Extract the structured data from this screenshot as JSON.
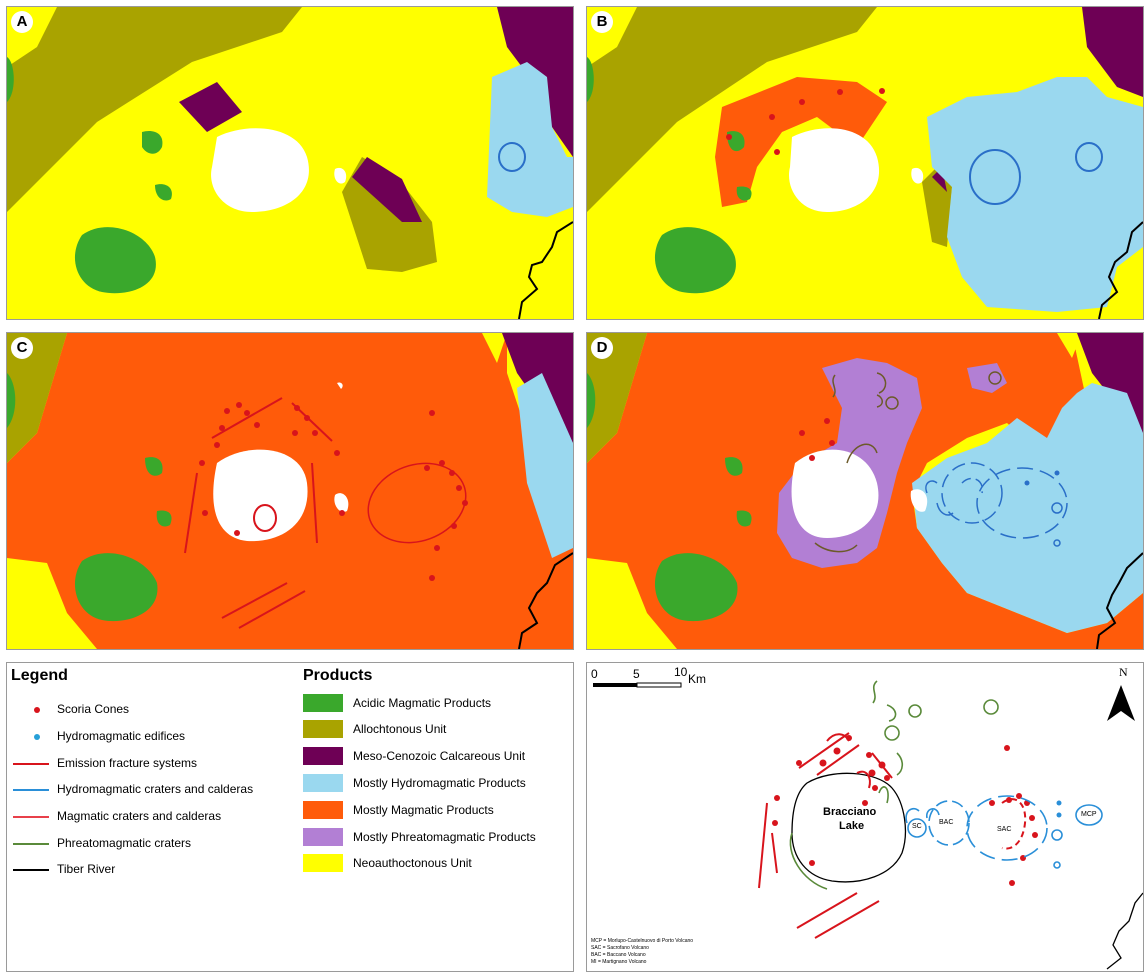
{
  "panels": {
    "a": {
      "label": "A"
    },
    "b": {
      "label": "B"
    },
    "c": {
      "label": "C"
    },
    "d": {
      "label": "D"
    }
  },
  "legend": {
    "title": "Legend",
    "items": [
      {
        "label": "Scoria Cones",
        "symbol": "red-dot"
      },
      {
        "label": "Hydromagmatic edifices",
        "symbol": "blue-dot"
      },
      {
        "label": "Emission fracture systems",
        "symbol": "red-line"
      },
      {
        "label": "Hydromagmatic craters and calderas",
        "symbol": "blue-line"
      },
      {
        "label": "Magmatic craters and calderas",
        "symbol": "red-line"
      },
      {
        "label": "Phreatomagmatic craters",
        "symbol": "green-line"
      },
      {
        "label": "Tiber River",
        "symbol": "black-line"
      }
    ]
  },
  "products": {
    "title": "Products",
    "items": [
      {
        "label": "Acidic Magmatic Products",
        "color": "#3aa82c"
      },
      {
        "label": "Allochtonous Unit",
        "color": "#a9a300"
      },
      {
        "label": "Meso-Cenozoic Calcareous Unit",
        "color": "#6e0055"
      },
      {
        "label": "Mostly Hydromagmatic Products",
        "color": "#9ad8ef"
      },
      {
        "label": "Mostly Magmatic Products",
        "color": "#ff5b0a"
      },
      {
        "label": "Mostly Phreatomagmatic Products",
        "color": "#b27fd4"
      },
      {
        "label": "Neoauthoctonous Unit",
        "color": "#ffff00"
      }
    ]
  },
  "overview": {
    "scale": {
      "ticks": [
        "0",
        "5",
        "10"
      ],
      "unit": "Km"
    },
    "north": "N",
    "lake_label_1": "Bracciano",
    "lake_label_2": "Lake",
    "caldera_labels": [
      "SC",
      "BAC",
      "SAC",
      "MCP"
    ],
    "abbreviations": [
      "MCP = Morlupo-Castelnuovo di Porto Volcano",
      "SAC = Sacrofano Volcano",
      "BAC = Baccano Volcano",
      "MI = Martignano Volcano"
    ]
  },
  "colors": {
    "acidic": "#3aa82c",
    "allochtonous": "#a9a300",
    "calcareous": "#6e0055",
    "hydromagmatic": "#9ad8ef",
    "magmatic": "#ff5b0a",
    "phreatomagmatic": "#b27fd4",
    "neoauthoctonous": "#ffff00",
    "scoria": "#d8141c",
    "hydro_edifice": "#27a0d8",
    "river": "#000000"
  }
}
